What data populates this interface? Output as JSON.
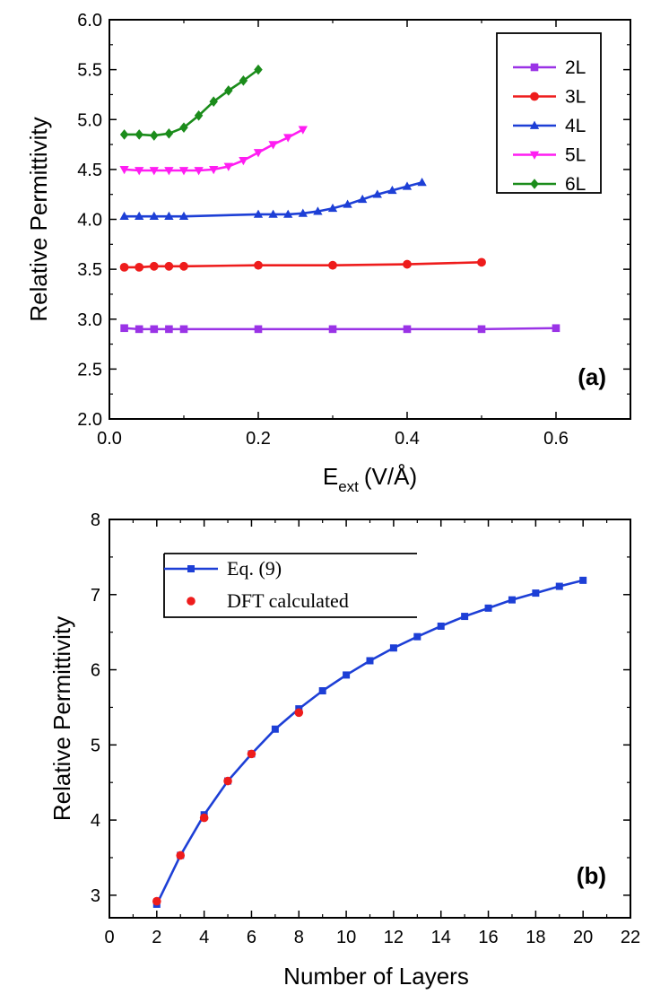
{
  "chart_data": [
    {
      "type": "line",
      "panel_label": "(a)",
      "xlabel_main": "E",
      "xlabel_sub": "ext",
      "xlabel_unit": "(V/Å)",
      "ylabel": "Relative Permittivity",
      "xlim": [
        0.0,
        0.7
      ],
      "ylim": [
        2.0,
        6.0
      ],
      "xticks": [
        "0.0",
        "0.2",
        "0.4",
        "0.6"
      ],
      "xtick_values": [
        0.0,
        0.2,
        0.4,
        0.6
      ],
      "yticks": [
        "2.0",
        "2.5",
        "3.0",
        "3.5",
        "4.0",
        "4.5",
        "5.0",
        "5.5",
        "6.0"
      ],
      "ytick_values": [
        2.0,
        2.5,
        3.0,
        3.5,
        4.0,
        4.5,
        5.0,
        5.5,
        6.0
      ],
      "legend_position": "top-right",
      "series": [
        {
          "name": "2L",
          "color": "#9a33e6",
          "marker": "square",
          "x": [
            0.02,
            0.04,
            0.06,
            0.08,
            0.1,
            0.2,
            0.3,
            0.4,
            0.5,
            0.6
          ],
          "y": [
            2.91,
            2.9,
            2.9,
            2.9,
            2.9,
            2.9,
            2.9,
            2.9,
            2.9,
            2.91
          ]
        },
        {
          "name": "3L",
          "color": "#ee1c1c",
          "marker": "circle",
          "x": [
            0.02,
            0.04,
            0.06,
            0.08,
            0.1,
            0.2,
            0.3,
            0.4,
            0.5
          ],
          "y": [
            3.52,
            3.52,
            3.53,
            3.53,
            3.53,
            3.54,
            3.54,
            3.55,
            3.57
          ]
        },
        {
          "name": "4L",
          "color": "#1d3fd6",
          "marker": "triangle-up",
          "x": [
            0.02,
            0.04,
            0.06,
            0.08,
            0.1,
            0.2,
            0.22,
            0.24,
            0.26,
            0.28,
            0.3,
            0.32,
            0.34,
            0.36,
            0.38,
            0.4,
            0.42
          ],
          "y": [
            4.03,
            4.03,
            4.03,
            4.03,
            4.03,
            4.05,
            4.05,
            4.05,
            4.06,
            4.08,
            4.11,
            4.15,
            4.2,
            4.25,
            4.29,
            4.33,
            4.37
          ]
        },
        {
          "name": "5L",
          "color": "#ff1df2",
          "marker": "triangle-down",
          "x": [
            0.02,
            0.04,
            0.06,
            0.08,
            0.1,
            0.12,
            0.14,
            0.16,
            0.18,
            0.2,
            0.22,
            0.24,
            0.26
          ],
          "y": [
            4.5,
            4.49,
            4.49,
            4.49,
            4.49,
            4.49,
            4.5,
            4.53,
            4.59,
            4.67,
            4.75,
            4.82,
            4.9
          ]
        },
        {
          "name": "6L",
          "color": "#1b8c1b",
          "marker": "diamond",
          "x": [
            0.02,
            0.04,
            0.06,
            0.08,
            0.1,
            0.12,
            0.14,
            0.16,
            0.18,
            0.2
          ],
          "y": [
            4.85,
            4.85,
            4.84,
            4.86,
            4.92,
            5.04,
            5.18,
            5.29,
            5.39,
            5.5
          ]
        }
      ]
    },
    {
      "type": "line",
      "panel_label": "(b)",
      "xlabel": "Number of Layers",
      "ylabel": "Relative Permittivity",
      "xlim": [
        0,
        22
      ],
      "ylim": [
        2.7,
        8.0
      ],
      "xticks": [
        "0",
        "2",
        "4",
        "6",
        "8",
        "10",
        "12",
        "14",
        "16",
        "18",
        "20",
        "22"
      ],
      "xtick_values": [
        0,
        2,
        4,
        6,
        8,
        10,
        12,
        14,
        16,
        18,
        20,
        22
      ],
      "yticks": [
        "3",
        "4",
        "5",
        "6",
        "7",
        "8"
      ],
      "ytick_values": [
        3,
        4,
        5,
        6,
        7,
        8
      ],
      "legend_position": "top-left",
      "series": [
        {
          "name": "Eq. (9)",
          "color": "#1d3fd6",
          "marker": "square",
          "line": true,
          "x": [
            2,
            3,
            4,
            5,
            6,
            7,
            8,
            9,
            10,
            11,
            12,
            13,
            14,
            15,
            16,
            17,
            18,
            19,
            20
          ],
          "y": [
            2.88,
            3.53,
            4.07,
            4.52,
            4.88,
            5.21,
            5.48,
            5.72,
            5.93,
            6.12,
            6.29,
            6.44,
            6.58,
            6.71,
            6.82,
            6.93,
            7.02,
            7.11,
            7.19
          ]
        },
        {
          "name": "DFT calculated",
          "color": "#ee1c1c",
          "marker": "circle",
          "line": false,
          "x": [
            2,
            3,
            4,
            5,
            6,
            8
          ],
          "y": [
            2.92,
            3.53,
            4.03,
            4.52,
            4.88,
            5.43
          ]
        }
      ]
    }
  ]
}
